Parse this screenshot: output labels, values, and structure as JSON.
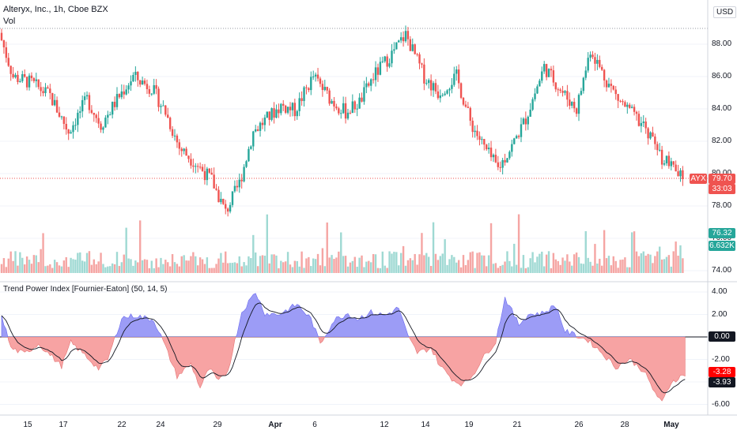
{
  "header": {
    "title": "Alteryx, Inc., 1h, Cboe BZX",
    "volume_label": "Vol",
    "indicator_title": "Trend Power Index [Fournier-Eaton] (50, 14, 5)",
    "currency": "USD"
  },
  "price_axis": {
    "ticks": [
      "88.00",
      "86.00",
      "84.00",
      "82.00",
      "80.00",
      "78.00",
      "76.00",
      "74.00"
    ]
  },
  "indicator_axis": {
    "ticks": [
      "4.00",
      "2.00",
      "0.00",
      "-2.00",
      "-4.00",
      "-6.00"
    ]
  },
  "time_axis": {
    "ticks": [
      {
        "label": "15",
        "bold": false
      },
      {
        "label": "17",
        "bold": false
      },
      {
        "label": "22",
        "bold": false
      },
      {
        "label": "24",
        "bold": false
      },
      {
        "label": "29",
        "bold": false
      },
      {
        "label": "Apr",
        "bold": true
      },
      {
        "label": "6",
        "bold": false
      },
      {
        "label": "12",
        "bold": false
      },
      {
        "label": "14",
        "bold": false
      },
      {
        "label": "19",
        "bold": false
      },
      {
        "label": "21",
        "bold": false
      },
      {
        "label": "26",
        "bold": false
      },
      {
        "label": "28",
        "bold": false
      },
      {
        "label": "May",
        "bold": true
      }
    ]
  },
  "badges": {
    "symbol": "AYX",
    "last_price": "79.70",
    "countdown": "33:03",
    "volume_ma": "76.32",
    "volume": "6.632K",
    "index_value": "0.00",
    "index_red": "-3.28",
    "index_black": "-3.93"
  },
  "colors": {
    "up": "#26a69a",
    "down": "#ef5350",
    "positive_fill": "#9c9cf6",
    "negative_fill": "#f7a3a3",
    "signal_line": "#131722"
  },
  "chart_data": [
    {
      "type": "candlestick",
      "title": "Alteryx, Inc., 1h, Cboe BZX",
      "ylim": [
        73.5,
        89.5
      ],
      "last": 79.7,
      "close_path": [
        [
          0,
          88.7
        ],
        [
          6,
          86.0
        ],
        [
          14,
          85.6
        ],
        [
          22,
          84.8
        ],
        [
          30,
          82.6
        ],
        [
          38,
          84.6
        ],
        [
          44,
          83.0
        ],
        [
          52,
          84.8
        ],
        [
          58,
          86.0
        ],
        [
          66,
          85.3
        ],
        [
          72,
          83.8
        ],
        [
          78,
          81.6
        ],
        [
          84,
          80.8
        ],
        [
          92,
          79.6
        ],
        [
          98,
          77.6
        ],
        [
          104,
          79.4
        ],
        [
          110,
          82.6
        ],
        [
          116,
          83.4
        ],
        [
          122,
          84.2
        ],
        [
          128,
          83.9
        ],
        [
          136,
          86.0
        ],
        [
          144,
          84.5
        ],
        [
          150,
          83.8
        ],
        [
          156,
          84.4
        ],
        [
          162,
          86.0
        ],
        [
          170,
          87.4
        ],
        [
          176,
          88.6
        ],
        [
          184,
          86.0
        ],
        [
          190,
          85.0
        ],
        [
          198,
          86.0
        ],
        [
          204,
          83.2
        ],
        [
          210,
          81.6
        ],
        [
          216,
          80.3
        ],
        [
          222,
          81.7
        ],
        [
          228,
          83.4
        ],
        [
          236,
          86.6
        ],
        [
          244,
          85.0
        ],
        [
          250,
          84.0
        ],
        [
          256,
          87.7
        ],
        [
          262,
          86.0
        ],
        [
          268,
          84.6
        ],
        [
          276,
          83.4
        ],
        [
          282,
          82.3
        ],
        [
          286,
          81.1
        ],
        [
          290,
          80.6
        ],
        [
          294,
          79.9
        ],
        [
          296,
          79.7
        ]
      ],
      "volume_ylim": [
        0,
        100
      ]
    },
    {
      "type": "area",
      "title": "Trend Power Index [Fournier-Eaton] (50, 14, 5)",
      "ylim": [
        -7.2,
        4.4
      ],
      "baseline": 0,
      "tpi_path": [
        [
          0,
          2.0
        ],
        [
          4,
          -1.0
        ],
        [
          10,
          -1.5
        ],
        [
          16,
          -0.6
        ],
        [
          22,
          -1.8
        ],
        [
          26,
          -2.6
        ],
        [
          30,
          -0.5
        ],
        [
          36,
          -1.6
        ],
        [
          42,
          -2.8
        ],
        [
          46,
          -2.0
        ],
        [
          52,
          1.7
        ],
        [
          58,
          1.9
        ],
        [
          66,
          1.5
        ],
        [
          70,
          -0.4
        ],
        [
          76,
          -3.5
        ],
        [
          82,
          -2.4
        ],
        [
          86,
          -4.5
        ],
        [
          90,
          -2.8
        ],
        [
          94,
          -4.0
        ],
        [
          98,
          -3.0
        ],
        [
          104,
          2.2
        ],
        [
          110,
          4.0
        ],
        [
          114,
          2.1
        ],
        [
          120,
          2.0
        ],
        [
          128,
          2.9
        ],
        [
          134,
          1.6
        ],
        [
          138,
          -0.6
        ],
        [
          144,
          1.5
        ],
        [
          150,
          2.1
        ],
        [
          154,
          1.6
        ],
        [
          160,
          2.2
        ],
        [
          166,
          1.9
        ],
        [
          172,
          2.6
        ],
        [
          176,
          0.0
        ],
        [
          180,
          -1.4
        ],
        [
          186,
          -1.0
        ],
        [
          190,
          -2.6
        ],
        [
          196,
          -3.9
        ],
        [
          200,
          -4.2
        ],
        [
          204,
          -3.4
        ],
        [
          208,
          -2.0
        ],
        [
          214,
          -0.4
        ],
        [
          218,
          3.5
        ],
        [
          224,
          1.1
        ],
        [
          228,
          2.0
        ],
        [
          234,
          2.1
        ],
        [
          240,
          2.8
        ],
        [
          244,
          0.5
        ],
        [
          248,
          0.2
        ],
        [
          254,
          -0.3
        ],
        [
          260,
          -1.4
        ],
        [
          266,
          -2.7
        ],
        [
          272,
          -2.0
        ],
        [
          278,
          -3.0
        ],
        [
          282,
          -4.6
        ],
        [
          286,
          -5.9
        ],
        [
          290,
          -4.0
        ],
        [
          296,
          -3.3
        ]
      ],
      "signal_last": -3.93
    }
  ]
}
